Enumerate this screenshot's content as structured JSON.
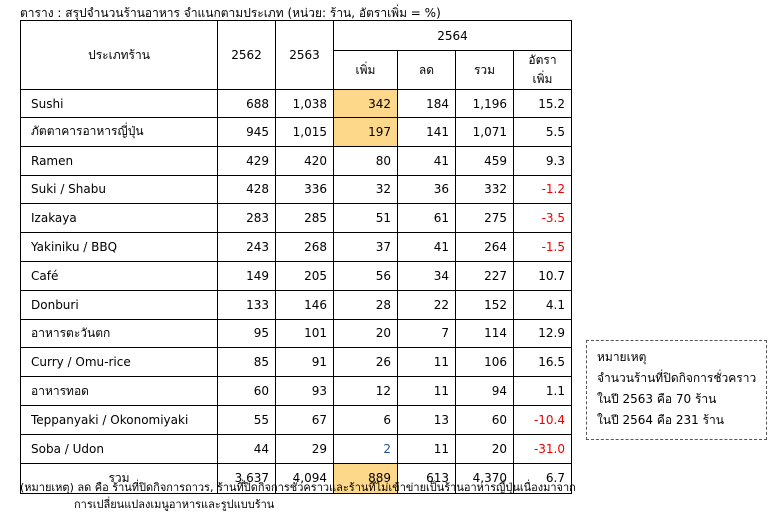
{
  "title": "ตาราง : สรุปจำนวนร้านอาหาร จำแนกตามประเภท (หน่วย: ร้าน, อัตราเพิ่ม = %)",
  "headers": {
    "type": "ประเภทร้าน",
    "y2562": "2562",
    "y2563": "2563",
    "y2564": "2564",
    "inc": "เพิ่ม",
    "dec": "ลด",
    "total": "รวม",
    "rate": "อัตราเพิ่ม"
  },
  "rows": [
    {
      "name": "Sushi",
      "y2562": "688",
      "y2563": "1,038",
      "inc": "342",
      "dec": "184",
      "total": "1,196",
      "rate": "15.2"
    },
    {
      "name": "ภัตตาคารอาหารญี่ปุ่น",
      "y2562": "945",
      "y2563": "1,015",
      "inc": "197",
      "dec": "141",
      "total": "1,071",
      "rate": "5.5"
    },
    {
      "name": "Ramen",
      "y2562": "429",
      "y2563": "420",
      "inc": "80",
      "dec": "41",
      "total": "459",
      "rate": "9.3"
    },
    {
      "name": "Suki / Shabu",
      "y2562": "428",
      "y2563": "336",
      "inc": "32",
      "dec": "36",
      "total": "332",
      "rate": "-1.2"
    },
    {
      "name": "Izakaya",
      "y2562": "283",
      "y2563": "285",
      "inc": "51",
      "dec": "61",
      "total": "275",
      "rate": "-3.5"
    },
    {
      "name": "Yakiniku / BBQ",
      "y2562": "243",
      "y2563": "268",
      "inc": "37",
      "dec": "41",
      "total": "264",
      "rate": "-1.5"
    },
    {
      "name": "Café",
      "y2562": "149",
      "y2563": "205",
      "inc": "56",
      "dec": "34",
      "total": "227",
      "rate": "10.7"
    },
    {
      "name": "Donburi",
      "y2562": "133",
      "y2563": "146",
      "inc": "28",
      "dec": "22",
      "total": "152",
      "rate": "4.1"
    },
    {
      "name": "อาหารตะวันตก",
      "y2562": "95",
      "y2563": "101",
      "inc": "20",
      "dec": "7",
      "total": "114",
      "rate": "12.9"
    },
    {
      "name": "Curry / Omu-rice",
      "y2562": "85",
      "y2563": "91",
      "inc": "26",
      "dec": "11",
      "total": "106",
      "rate": "16.5"
    },
    {
      "name": "อาหารทอด",
      "y2562": "60",
      "y2563": "93",
      "inc": "12",
      "dec": "11",
      "total": "94",
      "rate": "1.1"
    },
    {
      "name": "Teppanyaki / Okonomiyaki",
      "y2562": "55",
      "y2563": "67",
      "inc": "6",
      "dec": "13",
      "total": "60",
      "rate": "-10.4"
    },
    {
      "name": "Soba / Udon",
      "y2562": "44",
      "y2563": "29",
      "inc": "2",
      "dec": "11",
      "total": "20",
      "rate": "-31.0"
    }
  ],
  "total_row": {
    "name": "รวม",
    "y2562": "3,637",
    "y2563": "4,094",
    "inc": "889",
    "dec": "613",
    "total": "4,370",
    "rate": "6.7"
  },
  "note_box": {
    "heading": "หมายเหตุ",
    "line1": "จำนวนร้านที่ปิดกิจการชั่วคราว",
    "line2": "ในปี 2563 คือ 70 ร้าน",
    "line3": "ในปี 2564 คือ 231 ร้าน"
  },
  "footnote": {
    "line1": "(หมายเหตุ) ลด คือ ร้านที่ปิดกิจการถาวร, ร้านที่ปิดกิจการชั่วคราวและร้านที่ไม่เข้าข่ายเป็นร้านอาหารญี่ปุ่นเนื่องมาจาก",
    "line2": "การเปลี่ยนแปลงเมนูอาหารและรูปแบบร้าน"
  },
  "highlight_color": "#fdd88a",
  "negative_color": "#e00000"
}
